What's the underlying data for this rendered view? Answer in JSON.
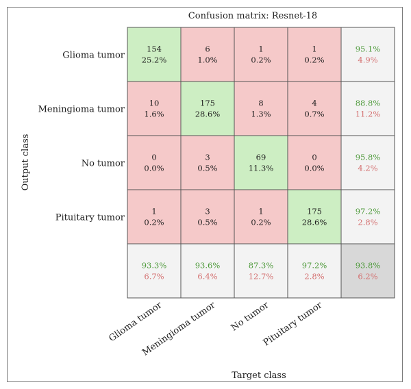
{
  "chart_data": {
    "type": "heatmap",
    "title": "Confusion matrix: Resnet-18",
    "xlabel": "Target class",
    "ylabel": "Output class",
    "row_labels": [
      "Glioma tumor",
      "Meningioma tumor",
      "No tumor",
      "Pituitary tumor"
    ],
    "col_labels": [
      "Glioma tumor",
      "Meningioma tumor",
      "No tumor",
      "Pituitary tumor"
    ],
    "counts": [
      [
        154,
        6,
        1,
        1
      ],
      [
        10,
        175,
        8,
        4
      ],
      [
        0,
        3,
        69,
        0
      ],
      [
        1,
        3,
        1,
        175
      ]
    ],
    "percents": [
      [
        "25.2%",
        "1.0%",
        "0.2%",
        "0.2%"
      ],
      [
        "1.6%",
        "28.6%",
        "1.3%",
        "0.7%"
      ],
      [
        "0.0%",
        "0.5%",
        "11.3%",
        "0.0%"
      ],
      [
        "0.2%",
        "0.5%",
        "0.2%",
        "28.6%"
      ]
    ],
    "row_summary": [
      [
        "95.1%",
        "4.9%"
      ],
      [
        "88.8%",
        "11.2%"
      ],
      [
        "95.8%",
        "4.2%"
      ],
      [
        "97.2%",
        "2.8%"
      ]
    ],
    "col_summary": [
      [
        "93.3%",
        "6.7%"
      ],
      [
        "93.6%",
        "6.4%"
      ],
      [
        "87.3%",
        "12.7%"
      ],
      [
        "97.2%",
        "2.8%"
      ]
    ],
    "overall": [
      "93.8%",
      "6.2%"
    ],
    "colors": {
      "correct": "#cdeec3",
      "incorrect": "#f5c9c9",
      "summary": "#f3f3f3",
      "overall": "#d8d8d8",
      "good_text": "#4e9a3b",
      "bad_text": "#d47070",
      "grid": "#555555"
    }
  }
}
